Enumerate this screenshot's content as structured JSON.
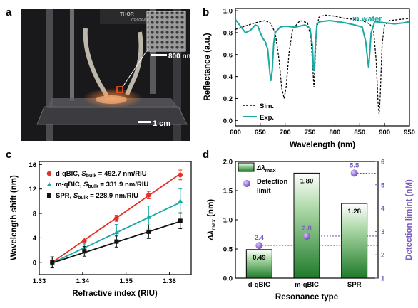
{
  "panel_labels": {
    "a": "a",
    "b": "b",
    "c": "c",
    "d": "d"
  },
  "photo": {
    "brand_text": "THOR",
    "part_text": "CP02/M",
    "scale_bar_inset": "800 nm",
    "scale_bar_main": "1 cm"
  },
  "chart_data": [
    {
      "type": "line",
      "panel": "b",
      "annotation": "in water",
      "xlabel": "Wavelength (nm)",
      "ylabel": "Reflectance (a.u.)",
      "xlim": [
        600,
        950
      ],
      "ylim": [
        -0.05,
        1.02
      ],
      "xticks": [
        "600",
        "650",
        "700",
        "750",
        "800",
        "850",
        "900",
        "950"
      ],
      "yticks": [
        "0.0",
        "0.2",
        "0.4",
        "0.6",
        "0.8",
        "1.0"
      ],
      "legend": [
        "Sim.",
        "Exp."
      ],
      "legend_position": "bottom-left",
      "series": [
        {
          "name": "Sim.",
          "style": "dashed",
          "color": "#000000",
          "x": [
            600,
            620,
            640,
            660,
            670,
            680,
            688,
            693,
            698,
            702,
            708,
            715,
            730,
            745,
            752,
            756,
            758,
            760,
            763,
            768,
            780,
            800,
            820,
            840,
            860,
            870,
            878,
            883,
            887,
            889,
            891,
            895,
            900,
            910,
            930,
            950
          ],
          "y": [
            0.83,
            0.86,
            0.89,
            0.91,
            0.89,
            0.8,
            0.55,
            0.3,
            0.2,
            0.3,
            0.62,
            0.83,
            0.91,
            0.89,
            0.75,
            0.45,
            0.3,
            0.5,
            0.82,
            0.94,
            0.96,
            0.95,
            0.93,
            0.92,
            0.9,
            0.88,
            0.82,
            0.55,
            0.15,
            0.06,
            0.2,
            0.7,
            0.87,
            0.91,
            0.92,
            0.93
          ]
        },
        {
          "name": "Exp.",
          "style": "solid",
          "color": "#1aa9a2",
          "x": [
            600,
            610,
            620,
            630,
            640,
            645,
            650,
            655,
            660,
            665,
            668,
            671,
            674,
            677,
            680,
            690,
            700,
            720,
            740,
            750,
            755,
            757,
            759,
            761,
            764,
            770,
            790,
            820,
            840,
            855,
            862,
            866,
            868,
            870,
            873,
            880,
            900,
            920,
            940,
            950
          ],
          "y": [
            0.92,
            0.86,
            0.8,
            0.82,
            0.87,
            0.86,
            0.8,
            0.75,
            0.72,
            0.65,
            0.5,
            0.36,
            0.45,
            0.7,
            0.8,
            0.85,
            0.86,
            0.85,
            0.87,
            0.84,
            0.68,
            0.45,
            0.47,
            0.7,
            0.88,
            0.9,
            0.91,
            0.89,
            0.87,
            0.85,
            0.72,
            0.55,
            0.48,
            0.6,
            0.8,
            0.9,
            0.89,
            0.88,
            0.89,
            0.9
          ]
        }
      ]
    },
    {
      "type": "scatter",
      "panel": "c",
      "xlabel": "Refractive index (RIU)",
      "ylabel": "Wavelength shift (nm)",
      "xlim": [
        1.33,
        1.365
      ],
      "ylim": [
        -2,
        16.5
      ],
      "xticks": [
        "1.33",
        "1.34",
        "1.35",
        "1.36"
      ],
      "yticks": [
        "0",
        "4",
        "8",
        "12",
        "16"
      ],
      "legend_position": "top-left",
      "legend": [
        {
          "prefix": "d-qBIC, ",
          "s": "S",
          "sub": "bulk",
          "suffix": " = 492.7 nm/RIU"
        },
        {
          "prefix": "m-qBIC, ",
          "s": "S",
          "sub": "bulk",
          "suffix": " = 331.9 nm/RIU"
        },
        {
          "prefix": "SPR, ",
          "s": "S",
          "sub": "bulk",
          "suffix": " = 228.9 nm/RIU"
        }
      ],
      "series": [
        {
          "name": "d-qBIC",
          "marker": "circle",
          "color": "#e53027",
          "x": [
            1.333,
            1.3404,
            1.3478,
            1.3552,
            1.3625
          ],
          "y": [
            0.0,
            3.5,
            7.2,
            11.0,
            14.3
          ],
          "err": [
            0.9,
            0.5,
            0.5,
            0.6,
            0.8
          ],
          "fit": [
            [
              1.333,
              0.0
            ],
            [
              1.3625,
              14.5
            ]
          ]
        },
        {
          "name": "m-qBIC",
          "marker": "triangle",
          "color": "#1aa9a2",
          "x": [
            1.333,
            1.3404,
            1.3478,
            1.3552,
            1.3625
          ],
          "y": [
            0.0,
            2.4,
            4.9,
            7.4,
            10.0
          ],
          "err": [
            0.9,
            0.8,
            1.3,
            1.8,
            2.0
          ],
          "fit": [
            [
              1.333,
              -0.1
            ],
            [
              1.3625,
              9.8
            ]
          ]
        },
        {
          "name": "SPR",
          "marker": "square",
          "color": "#111111",
          "x": [
            1.333,
            1.3404,
            1.3478,
            1.3552,
            1.3625
          ],
          "y": [
            0.0,
            1.8,
            3.4,
            5.0,
            6.8
          ],
          "err": [
            0.9,
            0.8,
            0.9,
            1.1,
            1.3
          ],
          "fit": [
            [
              1.333,
              -0.1
            ],
            [
              1.3625,
              6.7
            ]
          ]
        }
      ]
    },
    {
      "type": "bar",
      "panel": "d",
      "xlabel": "Resonance type",
      "ylabel_left": {
        "main": "Δλ",
        "sub": "max",
        "unit": " (nm)"
      },
      "ylabel_right": "Detection limint (nM)",
      "categories": [
        "d-qBIC",
        "m-qBIC",
        "SPR"
      ],
      "ylim_left": [
        0,
        2.0
      ],
      "yticks_left": [
        "0.0",
        "0.5",
        "1.0",
        "1.5",
        "2.0"
      ],
      "ylim_right": [
        1,
        6
      ],
      "yticks_right": [
        "1",
        "2",
        "3",
        "4",
        "5",
        "6"
      ],
      "legend": [
        {
          "main": "Δλ",
          "sub": "max"
        },
        {
          "main": "Detection",
          "second": "limit"
        }
      ],
      "legend_position": "top-left",
      "bars": {
        "name": "Δλmax",
        "values": [
          0.49,
          1.8,
          1.28
        ],
        "labels": [
          "0.49",
          "1.80",
          "1.28"
        ]
      },
      "points": {
        "name": "Detection limit",
        "color": "#7a5cc2",
        "values": [
          2.4,
          2.8,
          5.5
        ],
        "labels": [
          "2.4",
          "2.8",
          "5.5"
        ]
      }
    }
  ]
}
